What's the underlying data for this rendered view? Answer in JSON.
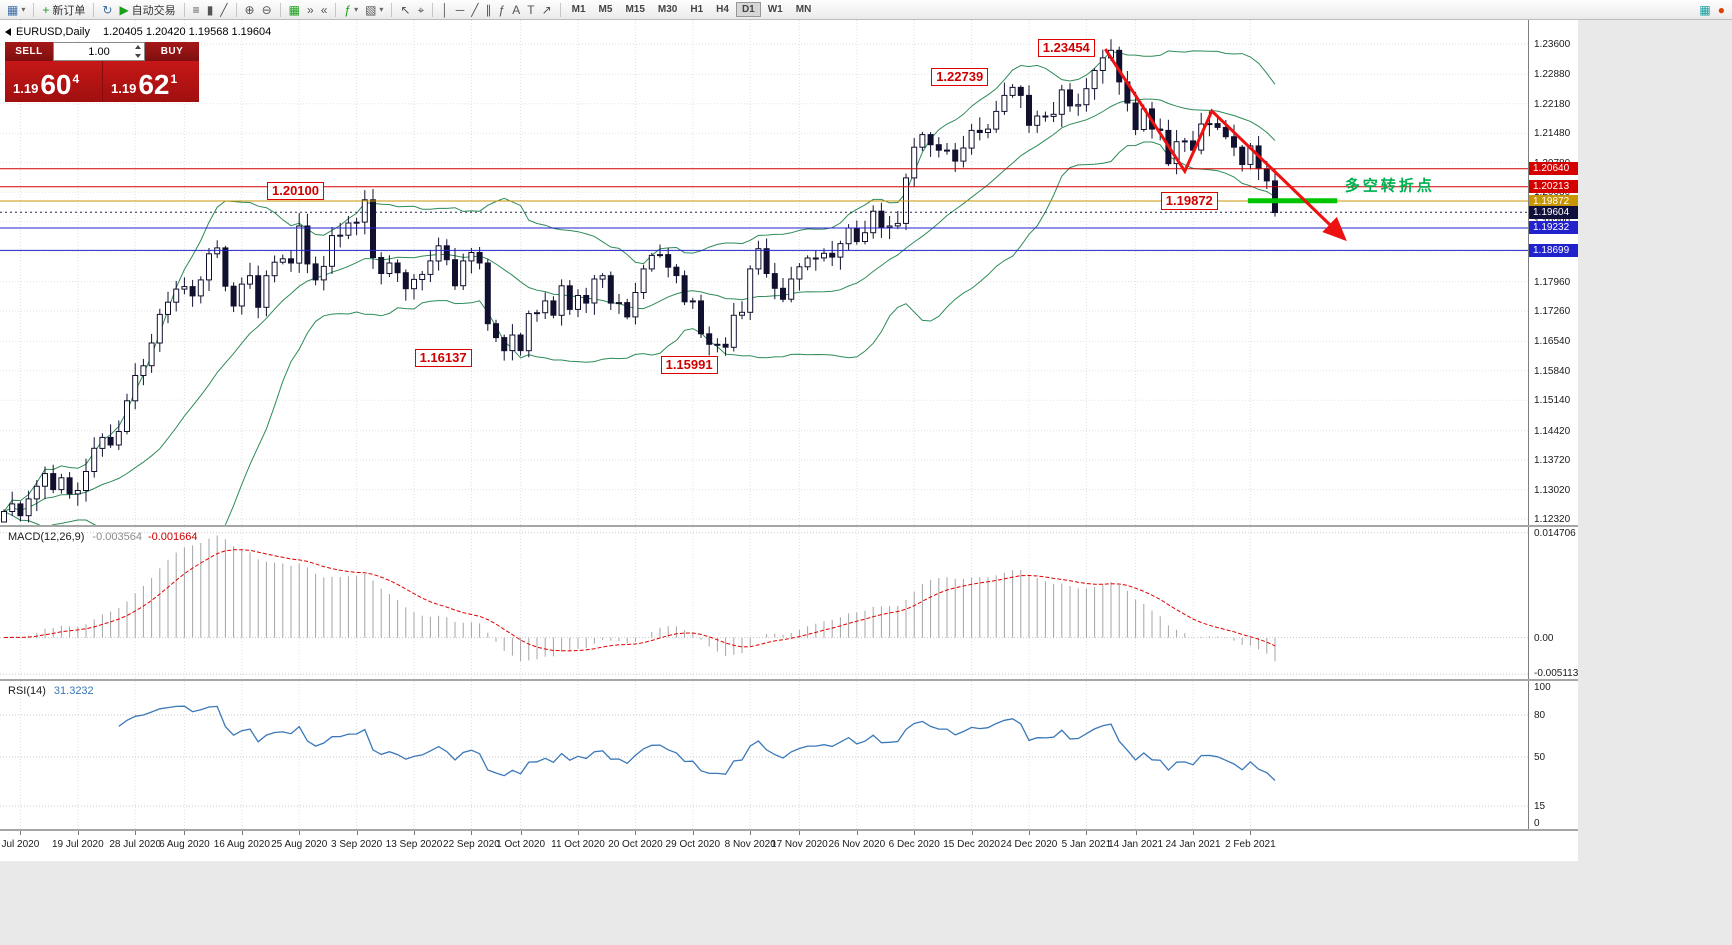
{
  "toolbar": {
    "caret_glyph": "▾",
    "timeframes": [
      "M1",
      "M5",
      "M15",
      "M30",
      "H1",
      "H4",
      "D1",
      "W1",
      "MN"
    ],
    "active_timeframe": "D1",
    "items": [
      {
        "name": "new-chart",
        "glyph": "▦",
        "color": "#3d6fa8",
        "caret": true
      },
      {
        "name": "sep"
      },
      {
        "name": "new-order",
        "glyph": "+",
        "color": "#18a018",
        "label": "新订单"
      },
      {
        "name": "sep"
      },
      {
        "name": "refresh",
        "glyph": "↻",
        "color": "#3d6fa8"
      },
      {
        "name": "autotrade",
        "glyph": "▶",
        "color": "#18a018",
        "label": "自动交易"
      },
      {
        "name": "sep"
      },
      {
        "name": "bar-chart",
        "glyph": "≡",
        "color": "#555555"
      },
      {
        "name": "candlestick-chart",
        "glyph": "▮",
        "color": "#555555"
      },
      {
        "name": "line-chart",
        "glyph": "╱",
        "color": "#555555"
      },
      {
        "name": "sep"
      },
      {
        "name": "zoom-in",
        "glyph": "⊕",
        "color": "#555555"
      },
      {
        "name": "zoom-out",
        "glyph": "⊖",
        "color": "#555555"
      },
      {
        "name": "sep"
      },
      {
        "name": "tile-windows",
        "glyph": "▦",
        "color": "#18a018"
      },
      {
        "name": "auto-scroll",
        "glyph": "»",
        "color": "#555555"
      },
      {
        "name": "chart-shift",
        "glyph": "«",
        "color": "#555555"
      },
      {
        "name": "sep"
      },
      {
        "name": "indicators",
        "glyph": "ƒ",
        "color": "#18a018",
        "caret": true
      },
      {
        "name": "templates",
        "glyph": "▧",
        "color": "#555555",
        "caret": true
      },
      {
        "name": "sep"
      },
      {
        "name": "cursor",
        "glyph": "↖",
        "color": "#555555"
      },
      {
        "name": "crosshair",
        "glyph": "⌖",
        "color": "#555555"
      },
      {
        "name": "sep"
      },
      {
        "name": "vertical-line",
        "glyph": "│",
        "color": "#555555"
      },
      {
        "name": "horizontal-line",
        "glyph": "─",
        "color": "#555555"
      },
      {
        "name": "trendline",
        "glyph": "╱",
        "color": "#555555"
      },
      {
        "name": "equidistant-channel",
        "glyph": "∥",
        "color": "#555555"
      },
      {
        "name": "fibonacci",
        "glyph": "ƒ",
        "color": "#555555"
      },
      {
        "name": "text",
        "glyph": "A",
        "color": "#555555"
      },
      {
        "name": "text-label",
        "glyph": "T",
        "color": "#555555"
      },
      {
        "name": "arrows",
        "glyph": "↗",
        "color": "#555555"
      },
      {
        "name": "sep"
      },
      {
        "name": "timeframes"
      },
      {
        "name": "spacer"
      },
      {
        "name": "data-window",
        "glyph": "▦",
        "color": "#18a0a0"
      },
      {
        "name": "alert-status",
        "glyph": "●",
        "color": "#e04000"
      }
    ]
  },
  "chart_header": {
    "symbol_period": "EURUSD,Daily",
    "ohlc": "1.20405 1.20420 1.19568 1.19604"
  },
  "one_click": {
    "sell_label": "SELL",
    "buy_label": "BUY",
    "volume": "1.00",
    "sell_price_small": "1.19",
    "sell_price_big": "60",
    "sell_price_sup": "4",
    "buy_price_small": "1.19",
    "buy_price_big": "62",
    "buy_price_sup": "1"
  },
  "chart_data": {
    "type": "candlestick",
    "symbol": "EURUSD",
    "period": "Daily",
    "last_ohlc": {
      "open": "1.20405",
      "high": "1.20420",
      "low": "1.19568",
      "close": "1.19604"
    },
    "trend_color": "#ee1111",
    "x_labels": [
      "Jul 2020",
      "19 Jul 2020",
      "28 Jul 2020",
      "6 Aug 2020",
      "16 Aug 2020",
      "25 Aug 2020",
      "3 Sep 2020",
      "13 Sep 2020",
      "22 Sep 2020",
      "1 Oct 2020",
      "11 Oct 2020",
      "20 Oct 2020",
      "29 Oct 2020",
      "8 Nov 2020",
      "17 Nov 2020",
      "26 Nov 2020",
      "6 Dec 2020",
      "15 Dec 2020",
      "24 Dec 2020",
      "5 Jan 2021",
      "14 Jan 2021",
      "24 Jan 2021",
      "2 Feb 2021"
    ],
    "x_label_indices": [
      2,
      9,
      16,
      22,
      29,
      36,
      43,
      50,
      57,
      63,
      70,
      77,
      84,
      91,
      97,
      104,
      111,
      118,
      125,
      132,
      138,
      145,
      152
    ],
    "closes": [
      1.125,
      1.1268,
      1.124,
      1.128,
      1.131,
      1.134,
      1.1302,
      1.133,
      1.1292,
      1.13,
      1.1345,
      1.14,
      1.1426,
      1.1408,
      1.144,
      1.1513,
      1.1573,
      1.1596,
      1.165,
      1.1718,
      1.1747,
      1.1778,
      1.1784,
      1.1762,
      1.18,
      1.1862,
      1.1876,
      1.1785,
      1.1738,
      1.179,
      1.181,
      1.1735,
      1.181,
      1.1842,
      1.185,
      1.184,
      1.1928,
      1.1838,
      1.18,
      1.1832,
      1.1905,
      1.1906,
      1.1935,
      1.1937,
      1.199,
      1.1853,
      1.1815,
      1.184,
      1.1817,
      1.1779,
      1.1801,
      1.1813,
      1.1845,
      1.1881,
      1.1848,
      1.1786,
      1.1845,
      1.1865,
      1.184,
      1.1696,
      1.1663,
      1.1632,
      1.1669,
      1.1632,
      1.172,
      1.1722,
      1.175,
      1.1716,
      1.1786,
      1.173,
      1.1763,
      1.1745,
      1.1802,
      1.181,
      1.1745,
      1.1746,
      1.1712,
      1.177,
      1.1826,
      1.1858,
      1.186,
      1.183,
      1.181,
      1.1748,
      1.175,
      1.1672,
      1.1647,
      1.1647,
      1.164,
      1.1716,
      1.1723,
      1.1826,
      1.1874,
      1.1815,
      1.178,
      1.1754,
      1.1802,
      1.1831,
      1.1852,
      1.1852,
      1.1863,
      1.1854,
      1.1886,
      1.1923,
      1.1891,
      1.1912,
      1.1963,
      1.1925,
      1.1928,
      1.1934,
      1.2042,
      1.2115,
      1.2145,
      1.2121,
      1.2108,
      1.2108,
      1.2082,
      1.2113,
      1.2155,
      1.215,
      1.2158,
      1.22,
      1.2238,
      1.2257,
      1.2238,
      1.2167,
      1.2189,
      1.2188,
      1.2193,
      1.2251,
      1.2213,
      1.2216,
      1.2254,
      1.2297,
      1.2327,
      1.2345,
      1.227,
      1.222,
      1.2157,
      1.2206,
      1.2158,
      1.2155,
      1.2076,
      1.2128,
      1.213,
      1.2108,
      1.217,
      1.2171,
      1.2162,
      1.214,
      1.2115,
      1.2074,
      1.2118,
      1.2064,
      1.2035,
      1.196
    ],
    "y_axis_labels": [
      "1.23600",
      "1.22880",
      "1.22180",
      "1.21480",
      "1.20780",
      "1.20080",
      "1.19380",
      "1.18680",
      "1.17960",
      "1.17260",
      "1.16540",
      "1.15840",
      "1.15140",
      "1.14420",
      "1.13720",
      "1.13020",
      "1.12320"
    ],
    "price_lines": [
      {
        "price": 1.2064,
        "label": "1.20640",
        "color": "#d40000"
      },
      {
        "price": 1.20213,
        "label": "1.20213",
        "color": "#d40000"
      },
      {
        "price": 1.19872,
        "label": "1.19872",
        "color": "#c89600"
      },
      {
        "price": 1.19604,
        "label": "1.19604",
        "color": "#10103c",
        "style": "bid"
      },
      {
        "price": 1.19232,
        "label": "1.19232",
        "color": "#2222cc"
      },
      {
        "price": 1.18699,
        "label": "1.18699",
        "color": "#2222cc"
      }
    ],
    "annotations": [
      {
        "text": "1.23454",
        "index": 134,
        "price": 1.235
      },
      {
        "text": "1.22739",
        "index": 121,
        "price": 1.2282
      },
      {
        "text": "1.20100",
        "index": 40,
        "price": 1.2011
      },
      {
        "text": "1.19872",
        "index": 149,
        "price": 1.1987
      },
      {
        "text": "1.16137",
        "index": 58,
        "price": 1.1614
      },
      {
        "text": "1.15991",
        "index": 88,
        "price": 1.1597
      }
    ],
    "trend_arrow": [
      [
        134.3,
        1.2348
      ],
      [
        144.0,
        1.2058
      ],
      [
        147.3,
        1.2201
      ],
      [
        163.5,
        1.1897
      ]
    ],
    "support_segment": {
      "i1": 151.7,
      "i2": 162.6,
      "price": 1.1988,
      "color": "#00c400"
    },
    "note": {
      "text": "多空转折点",
      "index": 163.5,
      "price": 1.2025,
      "color": "#00b050"
    },
    "indicators": {
      "bollinger": {
        "period": 20,
        "deviation": 2,
        "color": "#2e8b57"
      },
      "macd": {
        "name": "MACD(12,26,9)",
        "value_main": "-0.003564",
        "value_signal": "-0.001664",
        "axis_labels": [
          "0.014706",
          "0.00",
          "-0.005113"
        ],
        "axis_values": [
          0.014706,
          0,
          -0.005113
        ],
        "histogram_color": "#a4a4a4",
        "signal_color": "#e00000"
      },
      "rsi": {
        "name": "RSI(14)",
        "value": "31.3232",
        "axis_labels": [
          "100",
          "80",
          "50",
          "15",
          "0"
        ],
        "levels": [
          80,
          50,
          15
        ],
        "color": "#3b78b8"
      }
    }
  }
}
